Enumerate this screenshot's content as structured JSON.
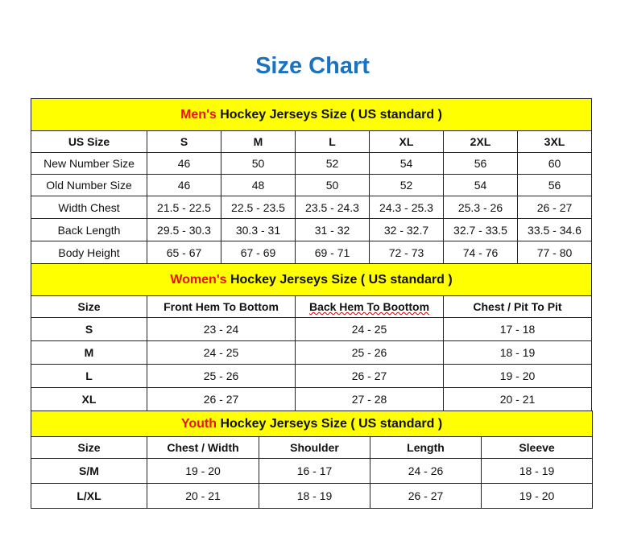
{
  "title": "Size Chart",
  "accent_color": "#e8120c",
  "section_color": "#ffff00",
  "title_color": "#1b72c0",
  "men": {
    "prefix": "Men's",
    "suffix": " Hockey Jerseys Size ( US standard )",
    "header": [
      "US Size",
      "S",
      "M",
      "L",
      "XL",
      "2XL",
      "3XL"
    ],
    "rows": [
      [
        "New Number Size",
        "46",
        "50",
        "52",
        "54",
        "56",
        "60"
      ],
      [
        "Old Number Size",
        "46",
        "48",
        "50",
        "52",
        "54",
        "56"
      ],
      [
        "Width Chest",
        "21.5 - 22.5",
        "22.5 - 23.5",
        "23.5 - 24.3",
        "24.3 - 25.3",
        "25.3 - 26",
        "26 - 27"
      ],
      [
        "Back Length",
        "29.5 - 30.3",
        "30.3 - 31",
        "31 - 32",
        "32 - 32.7",
        "32.7 - 33.5",
        "33.5 - 34.6"
      ],
      [
        "Body Height",
        "65 - 67",
        "67 - 69",
        "69 - 71",
        "72 - 73",
        "74 - 76",
        "77 - 80"
      ]
    ]
  },
  "women": {
    "prefix": "Women's",
    "suffix": " Hockey Jerseys Size ( US standard )",
    "header": [
      "Size",
      "Front Hem To Bottom",
      "Back Hem To Boottom",
      "Chest / Pit To Pit"
    ],
    "rows": [
      [
        "S",
        "23 - 24",
        "24 - 25",
        "17 - 18"
      ],
      [
        "M",
        "24 - 25",
        "25 - 26",
        "18 - 19"
      ],
      [
        "L",
        "25 - 26",
        "26 - 27",
        "19 - 20"
      ],
      [
        "XL",
        "26 - 27",
        "27 - 28",
        "20 - 21"
      ]
    ]
  },
  "youth": {
    "prefix": "Youth",
    "suffix": " Hockey Jerseys Size ( US standard )",
    "header": [
      "Size",
      "Chest / Width",
      "Shoulder",
      "Length",
      "Sleeve"
    ],
    "rows": [
      [
        "S/M",
        "19 - 20",
        "16 - 17",
        "24 - 26",
        "18 - 19"
      ],
      [
        "L/XL",
        "20 - 21",
        "18 - 19",
        "26 - 27",
        "19 - 20"
      ]
    ]
  }
}
